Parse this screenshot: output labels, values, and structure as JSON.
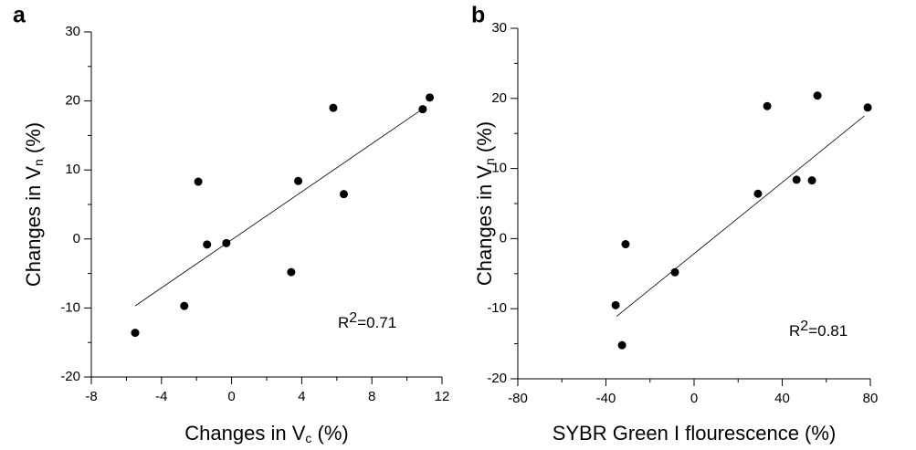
{
  "chart_data": [
    {
      "type": "scatter",
      "panel": "a",
      "x": [
        -5.5,
        -2.7,
        -1.9,
        -1.4,
        -0.3,
        3.4,
        3.8,
        5.8,
        6.4,
        10.9,
        11.3
      ],
      "y": [
        -13.6,
        -9.7,
        8.3,
        -0.8,
        -0.6,
        -4.8,
        8.4,
        19.0,
        6.5,
        18.8,
        20.5
      ],
      "color": "#000000",
      "trendline": {
        "x": [
          -5.5,
          11.1
        ],
        "y": [
          -9.7,
          19.2
        ]
      },
      "xlim": [
        -8,
        12
      ],
      "xticks": [
        -8,
        -4,
        0,
        4,
        8,
        12
      ],
      "xminorticks": [
        -6,
        -2,
        2,
        6,
        10
      ],
      "ylim": [
        -20,
        30
      ],
      "yticks": [
        -20,
        -10,
        0,
        10,
        20,
        30
      ],
      "yminorticks": [
        -15,
        -5,
        5,
        15,
        25
      ],
      "xlabel": "Changes in V",
      "xlabel_sub": "c",
      "xlabel_suffix": " (%)",
      "ylabel": "Changes in V",
      "ylabel_sub": "n",
      "ylabel_suffix": " (%)",
      "annotation": {
        "base": "R",
        "sup": "2",
        "text": "=0.71"
      }
    },
    {
      "type": "scatter",
      "panel": "b",
      "x": [
        -35.6,
        -32.7,
        -31.1,
        -8.7,
        29.0,
        33.2,
        46.5,
        53.5,
        56.0,
        78.8
      ],
      "y": [
        -9.5,
        -15.2,
        -0.8,
        -4.8,
        6.4,
        18.9,
        8.4,
        8.3,
        20.4,
        18.7
      ],
      "color": "#000000",
      "trendline": {
        "x": [
          -35.2,
          77.3
        ],
        "y": [
          -11.1,
          17.5
        ]
      },
      "xlim": [
        -80,
        80
      ],
      "xticks": [
        -80,
        -40,
        0,
        40,
        80
      ],
      "xminorticks": [
        -60,
        -20,
        20,
        60
      ],
      "ylim": [
        -20,
        30
      ],
      "yticks": [
        -20,
        -10,
        0,
        10,
        20,
        30
      ],
      "yminorticks": [
        -15,
        -5,
        5,
        15,
        25
      ],
      "xlabel": "SYBR Green I flourescence (%)",
      "ylabel": "Changes in V",
      "ylabel_sub": "n",
      "ylabel_suffix": " (%)",
      "annotation": {
        "base": "R",
        "sup": "2",
        "text": "=0.81"
      }
    }
  ]
}
